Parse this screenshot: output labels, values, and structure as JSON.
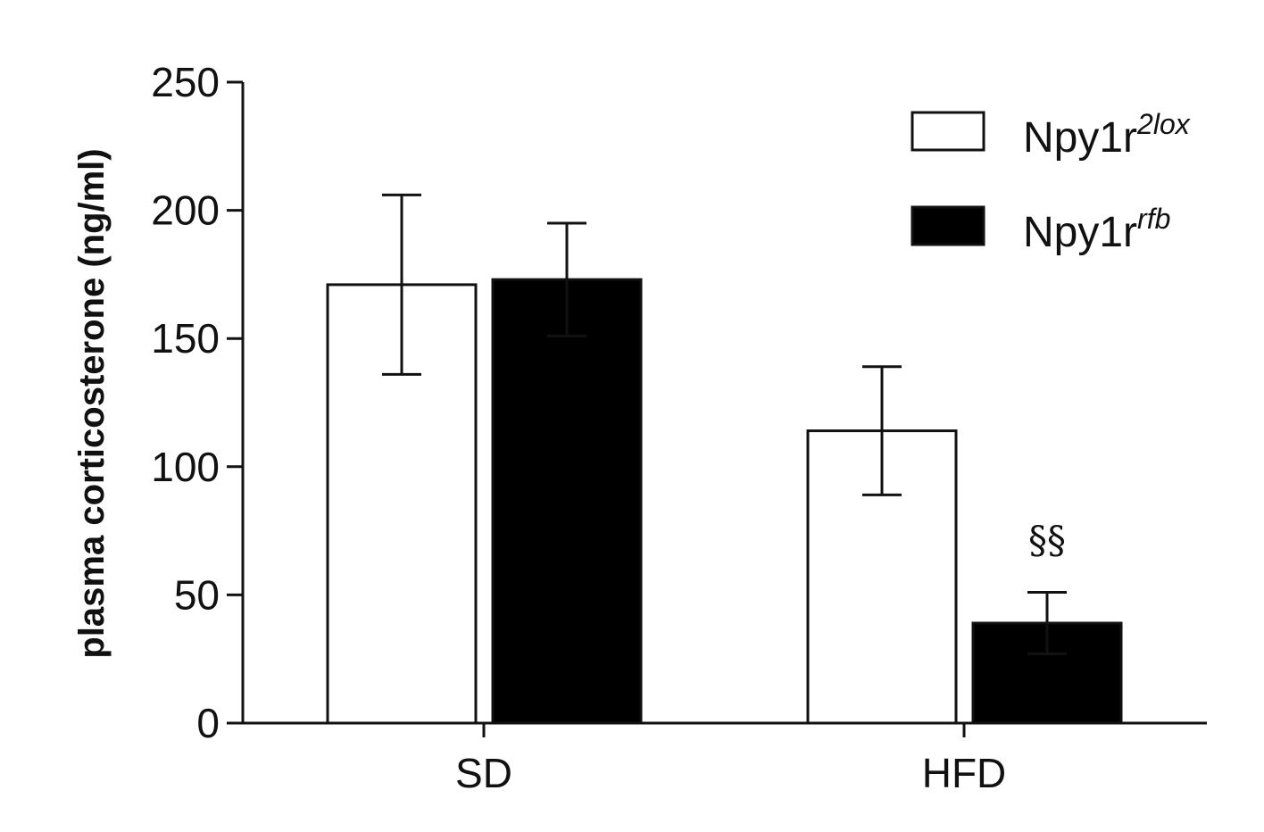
{
  "chart_data": {
    "type": "bar",
    "categories": [
      "SD",
      "HFD"
    ],
    "ylabel": "plasma corticosterone (ng/ml)",
    "ylim": [
      0,
      250
    ],
    "yticks": [
      0,
      50,
      100,
      150,
      200,
      250
    ],
    "series": [
      {
        "name": "Npy1r",
        "name_superscript": "2lox",
        "fill": "#ffffff",
        "values": [
          171,
          114
        ],
        "errors": [
          35,
          25
        ]
      },
      {
        "name": "Npy1r",
        "name_superscript": "rfb",
        "fill": "#000000",
        "values": [
          173,
          39
        ],
        "errors": [
          22,
          12
        ]
      }
    ],
    "annotations": [
      {
        "text": "§§",
        "category": "HFD",
        "series": 1
      }
    ],
    "legend": "top-right",
    "grid": false
  }
}
